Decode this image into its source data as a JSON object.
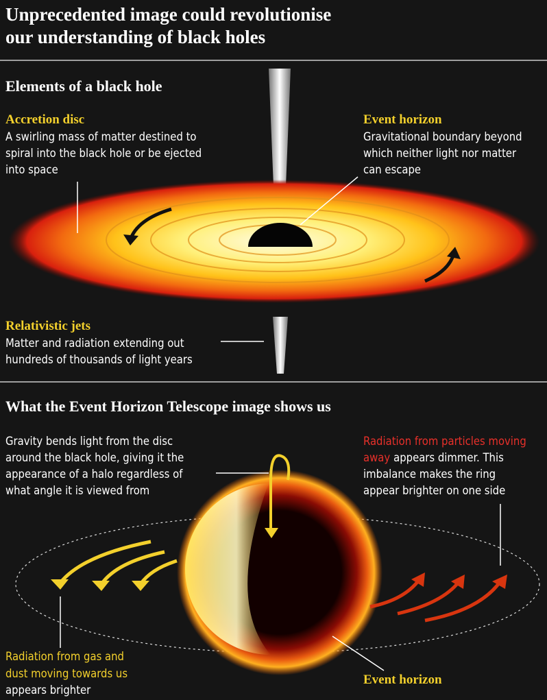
{
  "header": {
    "title": [
      "Unprecedented image could revolutionise",
      "our understanding of black holes"
    ]
  },
  "elements": {
    "heading": "Elements of a black hole",
    "accretion_disc": {
      "label": "Accretion disc",
      "text": [
        "A swirling mass of matter destined to",
        "spiral into the black hole or be ejected",
        "into space"
      ]
    },
    "event_horizon": {
      "label": "Event horizon",
      "text": [
        "Gravitational boundary beyond",
        "which neither light nor matter",
        "can escape"
      ]
    },
    "jets": {
      "label": "Relativistic jets",
      "text": [
        "Matter and radiation extending out",
        "hundreds of thousands of light years"
      ]
    }
  },
  "telescope": {
    "heading": "What the Event Horizon Telescope image shows us",
    "gravity": [
      "Gravity bends light from the disc",
      "around the black hole, giving it the",
      "appearance of a halo regardless of",
      "what angle it is viewed from"
    ],
    "away": {
      "highlight": [
        "Radiation from particles moving",
        "away"
      ],
      "text": [
        "appears dimmer. This",
        "imbalance makes the ring",
        "appear brighter on one side"
      ]
    },
    "towards": {
      "highlight": [
        "Radiation from gas and",
        "dust moving towards us"
      ],
      "text": [
        "appears brighter"
      ]
    },
    "event_horizon": "Event horizon"
  }
}
